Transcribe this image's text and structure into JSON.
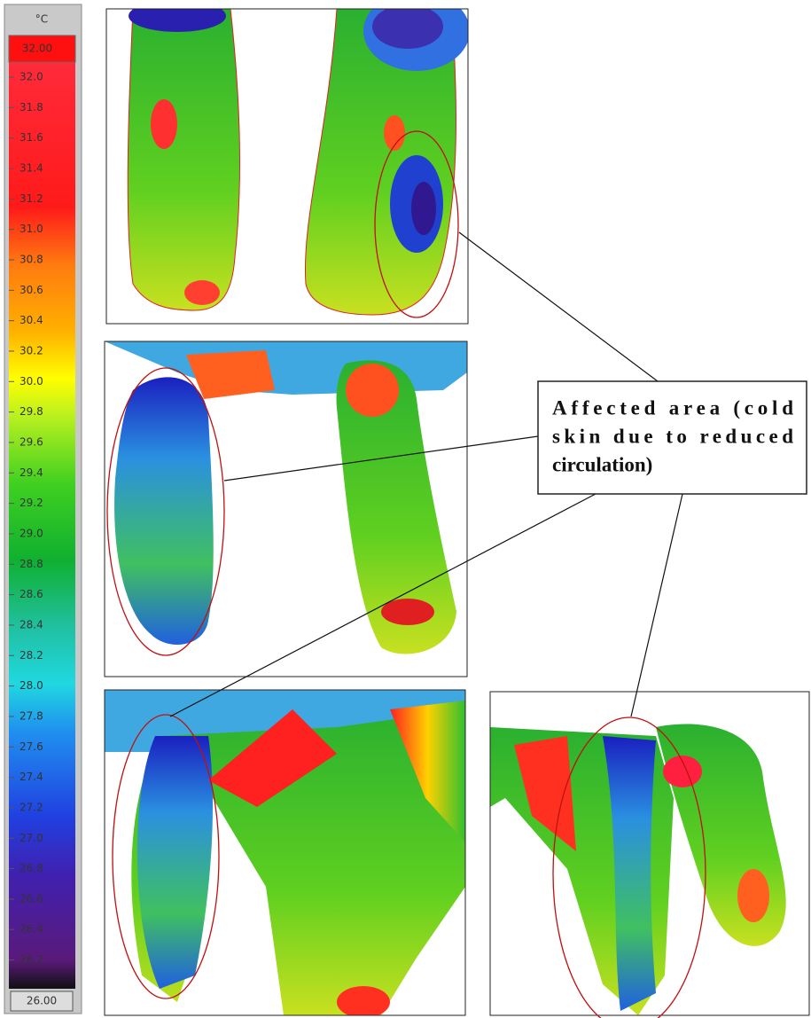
{
  "colorbar": {
    "unit": "°C",
    "max_label": "32.00",
    "min_label": "26.00",
    "ticks": [
      "32.0",
      "31.8",
      "31.6",
      "31.4",
      "31.2",
      "31.0",
      "30.8",
      "30.6",
      "30.4",
      "30.2",
      "30.0",
      "29.8",
      "29.6",
      "29.4",
      "29.2",
      "29.0",
      "28.8",
      "28.6",
      "28.4",
      "28.2",
      "28.0",
      "27.8",
      "27.6",
      "27.4",
      "27.2",
      "27.0",
      "26.8",
      "26.6",
      "26.4",
      "26.2"
    ]
  },
  "callout": {
    "lines": [
      "Affected area (cold",
      "skin due to reduced",
      "circulation)"
    ]
  }
}
